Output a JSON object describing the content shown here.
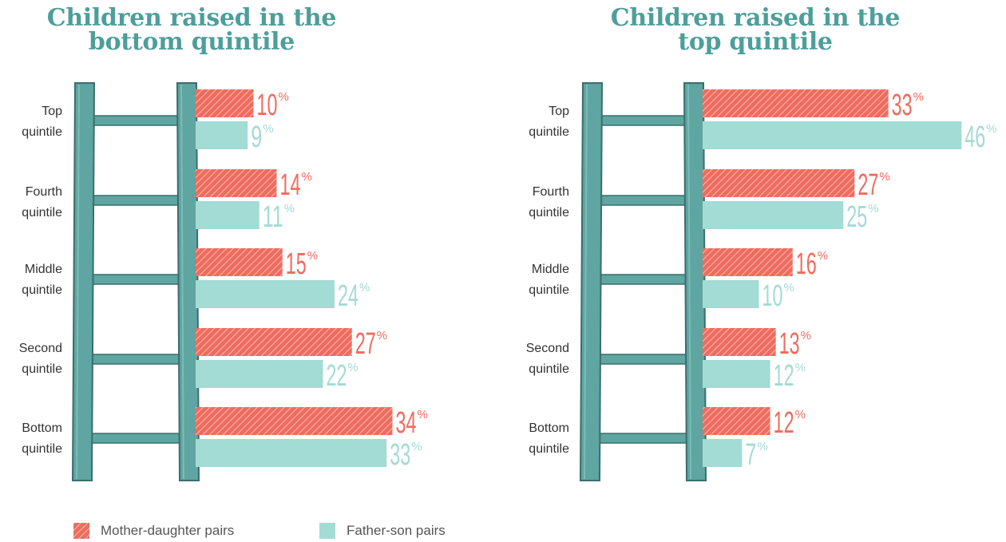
{
  "colors": {
    "mother_daughter": "#ef6b5e",
    "father_son": "#a3dbd5",
    "ladder": "#5fa5a1",
    "ladder_edge": "#3a6e6c",
    "title": "#4e9e9b"
  },
  "legend": {
    "mother_daughter": "Mother-daughter pairs",
    "father_son": "Father-son pairs"
  },
  "chart_data": [
    {
      "type": "bar",
      "title": "Children raised in the\nbottom quintile",
      "categories": [
        "Top\nquintile",
        "Fourth\nquintile",
        "Middle\nquintile",
        "Second\nquintile",
        "Bottom\nquintile"
      ],
      "series": [
        {
          "name": "Mother-daughter pairs",
          "values": [
            10,
            14,
            15,
            27,
            34
          ]
        },
        {
          "name": "Father-son pairs",
          "values": [
            9,
            11,
            24,
            22,
            33
          ]
        }
      ],
      "value_suffix": "%"
    },
    {
      "type": "bar",
      "title": "Children raised in the\ntop quintile",
      "categories": [
        "Top\nquintile",
        "Fourth\nquintile",
        "Middle\nquintile",
        "Second\nquintile",
        "Bottom\nquintile"
      ],
      "series": [
        {
          "name": "Mother-daughter pairs",
          "values": [
            33,
            27,
            16,
            13,
            12
          ]
        },
        {
          "name": "Father-son pairs",
          "values": [
            46,
            25,
            10,
            12,
            7
          ]
        }
      ],
      "value_suffix": "%"
    }
  ]
}
